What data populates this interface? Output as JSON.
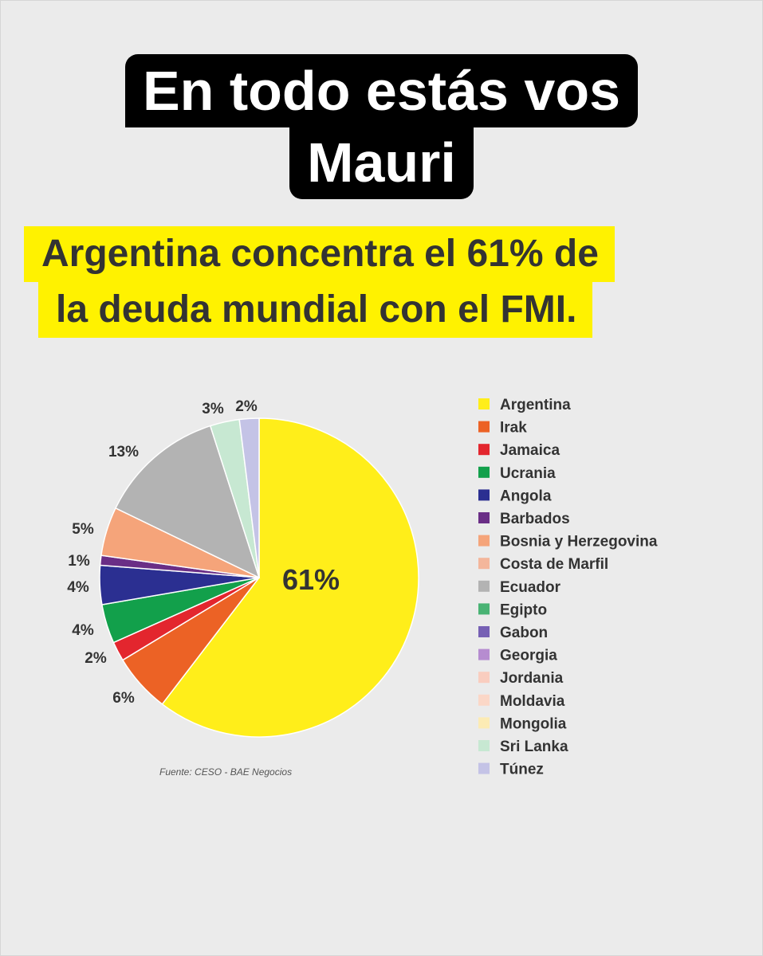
{
  "meme": {
    "line1": "En todo estás vos",
    "line2": "Mauri"
  },
  "headline": {
    "line1": "Argentina concentra el 61% de",
    "line2": "la deuda mundial con el FMI."
  },
  "chart_data": {
    "type": "pie",
    "title": "",
    "slices": [
      {
        "name": "Argentina",
        "value": 61,
        "label": "61%",
        "color": "#ffee1a"
      },
      {
        "name": "Irak",
        "value": 6,
        "label": "6%",
        "color": "#ec6225"
      },
      {
        "name": "Jamaica",
        "value": 2,
        "label": "2%",
        "color": "#e3262e"
      },
      {
        "name": "Ucrania",
        "value": 4,
        "label": "4%",
        "color": "#12a04b"
      },
      {
        "name": "Angola",
        "value": 4,
        "label": "4%",
        "color": "#2b2f91"
      },
      {
        "name": "Barbados",
        "value": 1,
        "label": "1%",
        "color": "#6a2e86"
      },
      {
        "name": "Bosnia y Herzegovina",
        "value": 5,
        "label": "5%",
        "color": "#f5a47a"
      },
      {
        "name": "Costa de Marfil",
        "value": 0,
        "label": "",
        "color": "#f4b69b"
      },
      {
        "name": "Ecuador",
        "value": 13,
        "label": "13%",
        "color": "#b3b3b3"
      },
      {
        "name": "Egipto",
        "value": 0,
        "label": "",
        "color": "#49b374"
      },
      {
        "name": "Gabon",
        "value": 0,
        "label": "",
        "color": "#7660b4"
      },
      {
        "name": "Georgia",
        "value": 0,
        "label": "",
        "color": "#b68cd0"
      },
      {
        "name": "Jordania",
        "value": 0,
        "label": "",
        "color": "#f9cdbf"
      },
      {
        "name": "Moldavia",
        "value": 0,
        "label": "",
        "color": "#fbd7c7"
      },
      {
        "name": "Mongolia",
        "value": 0,
        "label": "",
        "color": "#fcebb4"
      },
      {
        "name": "Sri Lanka",
        "value": 3,
        "label": "3%",
        "color": "#c7e8d2"
      },
      {
        "name": "Túnez",
        "value": 2,
        "label": "2%",
        "color": "#c4c3e6"
      }
    ],
    "legend_position": "right"
  },
  "source": "Fuente: CESO - BAE Negocios"
}
